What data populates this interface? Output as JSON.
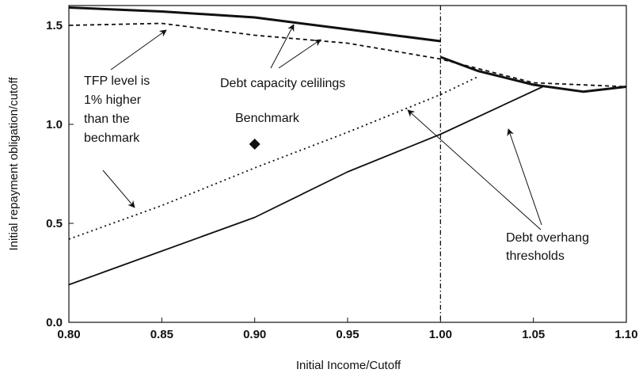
{
  "chart_data": {
    "type": "line",
    "title": "",
    "xlabel": "Initial Income/Cutoff",
    "ylabel": "Initial repayment obligation/cutoff",
    "xlim": [
      0.8,
      1.1
    ],
    "ylim": [
      0.0,
      1.6
    ],
    "x_ticks": [
      0.8,
      0.85,
      0.9,
      0.95,
      1.0,
      1.05,
      1.1
    ],
    "x_tick_labels": [
      "0.80",
      "0.85",
      "0.90",
      "0.95",
      "1.00",
      "1.05",
      "1.10"
    ],
    "y_ticks": [
      0.0,
      0.5,
      1.0,
      1.5
    ],
    "y_tick_labels": [
      "0.0",
      "0.5",
      "1.0",
      "1.5"
    ],
    "grid": false,
    "legend": "none",
    "reference_line": {
      "x": 1.0,
      "style": "dash-dot"
    },
    "series": [
      {
        "style": "solid-thick",
        "x": [
          0.8,
          0.85,
          0.9,
          0.95,
          1.0
        ],
        "y": [
          1.59,
          1.57,
          1.54,
          1.48,
          1.42
        ]
      },
      {
        "style": "solid-thick",
        "x": [
          1.0,
          1.02,
          1.05,
          1.077,
          1.1
        ],
        "y": [
          1.34,
          1.27,
          1.2,
          1.165,
          1.19
        ]
      },
      {
        "style": "dashed",
        "x": [
          0.8,
          0.85,
          0.9,
          0.95,
          1.0,
          1.05,
          1.1
        ],
        "y": [
          1.5,
          1.51,
          1.45,
          1.41,
          1.33,
          1.21,
          1.19
        ]
      },
      {
        "style": "solid",
        "x": [
          0.8,
          0.9,
          0.95,
          1.0,
          1.055
        ],
        "y": [
          0.19,
          0.53,
          0.76,
          0.95,
          1.19
        ]
      },
      {
        "style": "dotted",
        "x": [
          0.8,
          0.85,
          0.9,
          0.95,
          1.0,
          1.02
        ],
        "y": [
          0.42,
          0.59,
          0.78,
          0.96,
          1.15,
          1.24
        ]
      }
    ],
    "benchmark_point": {
      "x": 0.9,
      "y": 0.9
    },
    "annotations": {
      "tfp_text": [
        "TFP level is",
        "1% higher",
        "than the",
        "bechmark"
      ],
      "capacity_text": "Debt capacity celilings",
      "benchmark_text": "Benchmark",
      "overhang_text": [
        "Debt overhang",
        "thresholds"
      ]
    }
  }
}
